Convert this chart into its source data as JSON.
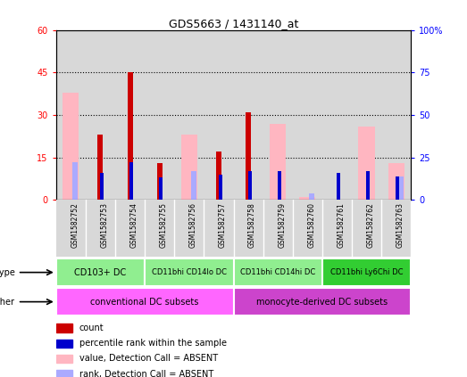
{
  "title": "GDS5663 / 1431140_at",
  "samples": [
    "GSM1582752",
    "GSM1582753",
    "GSM1582754",
    "GSM1582755",
    "GSM1582756",
    "GSM1582757",
    "GSM1582758",
    "GSM1582759",
    "GSM1582760",
    "GSM1582761",
    "GSM1582762",
    "GSM1582763"
  ],
  "count_values": [
    0,
    23,
    45,
    13,
    0,
    17,
    31,
    0,
    0,
    0,
    0,
    0
  ],
  "percentile_values": [
    0,
    16,
    22,
    13,
    0,
    15,
    17,
    17,
    0,
    16,
    17,
    14
  ],
  "absent_value_values": [
    38,
    0,
    0,
    0,
    23,
    0,
    0,
    27,
    1,
    0,
    26,
    13
  ],
  "absent_rank_values": [
    22,
    0,
    0,
    0,
    17,
    0,
    0,
    0,
    4,
    0,
    0,
    14
  ],
  "ylim_left": [
    0,
    60
  ],
  "ylim_right": [
    0,
    100
  ],
  "yticks_left": [
    0,
    15,
    30,
    45,
    60
  ],
  "yticks_right": [
    0,
    25,
    50,
    75,
    100
  ],
  "yticklabels_left": [
    "0",
    "15",
    "30",
    "45",
    "60"
  ],
  "yticklabels_right": [
    "0",
    "25",
    "50",
    "75",
    "100%"
  ],
  "cell_type_groups": [
    {
      "label": "CD103+ DC",
      "start": 0,
      "end": 2,
      "color": "#90EE90"
    },
    {
      "label": "CD11bhi CD14lo DC",
      "start": 3,
      "end": 5,
      "color": "#90EE90"
    },
    {
      "label": "CD11bhi CD14hi DC",
      "start": 6,
      "end": 8,
      "color": "#90EE90"
    },
    {
      "label": "CD11bhi Ly6Chi DC",
      "start": 9,
      "end": 11,
      "color": "#32CD32"
    }
  ],
  "other_groups": [
    {
      "label": "conventional DC subsets",
      "start": 0,
      "end": 5,
      "color": "#FF66FF"
    },
    {
      "label": "monocyte-derived DC subsets",
      "start": 6,
      "end": 11,
      "color": "#CC44CC"
    }
  ],
  "color_count": "#CC0000",
  "color_percentile": "#0000CC",
  "color_absent_value": "#FFB6C1",
  "color_absent_rank": "#AAAAFF",
  "bg_color": "#D8D8D8",
  "legend_items": [
    "count",
    "percentile rank within the sample",
    "value, Detection Call = ABSENT",
    "rank, Detection Call = ABSENT"
  ]
}
